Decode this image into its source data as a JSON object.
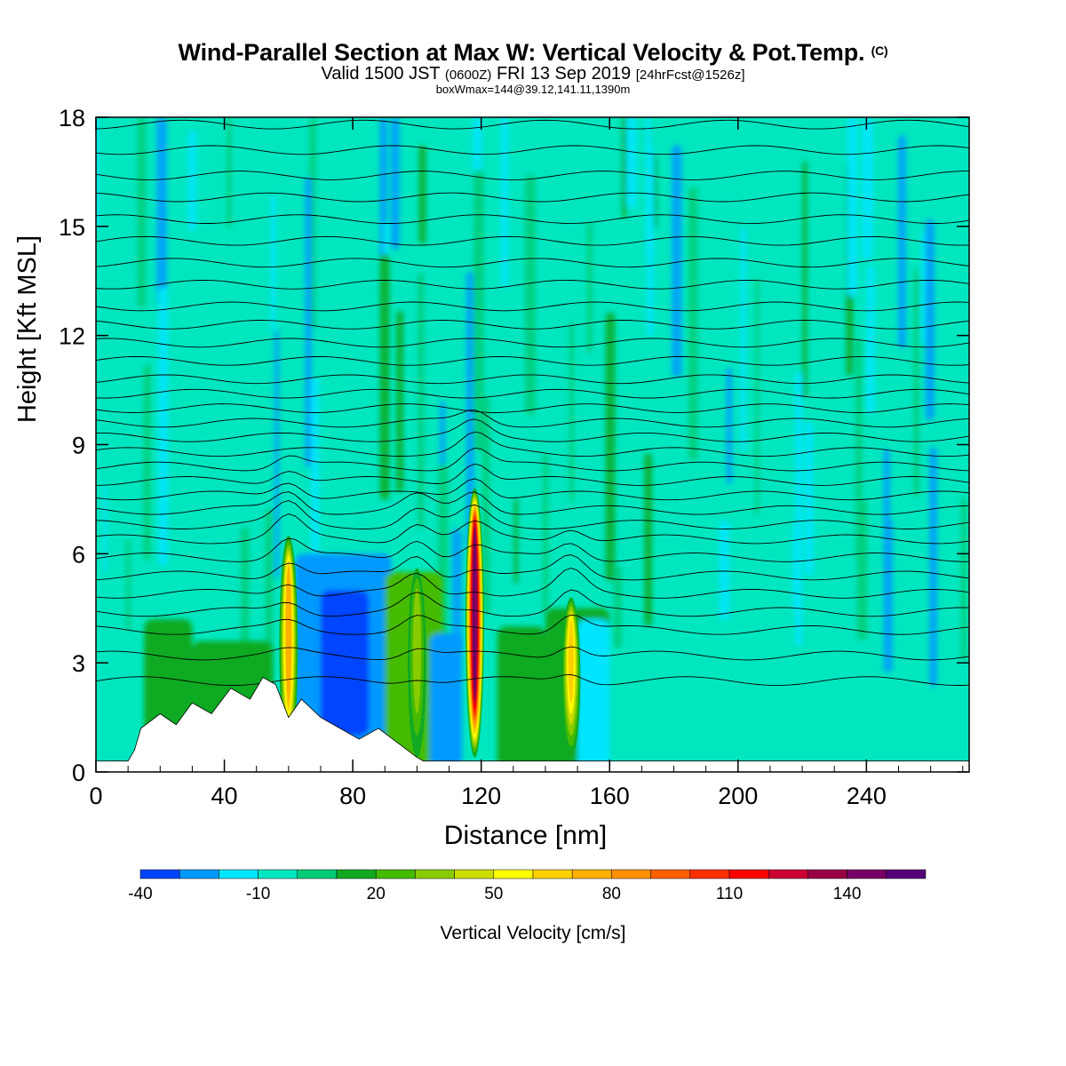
{
  "header": {
    "title": "Wind-Parallel Section at Max W: Vertical Velocity & Pot.Temp.",
    "title_mark": "(C)",
    "subtitle_a": "Valid 1500 JST",
    "subtitle_b": "(0600Z)",
    "subtitle_c": "FRI 13 Sep 2019",
    "subtitle_d": "[24hrFcst@1526z]",
    "subtitle_line3": "boxWmax=144@39.12,141.11,1390m"
  },
  "chart_data": {
    "type": "heatmap",
    "xlabel": "Distance [nm]",
    "ylabel": "Height [Kft MSL]",
    "xlim": [
      0,
      272
    ],
    "ylim": [
      0,
      18
    ],
    "x_ticks": [
      0,
      40,
      80,
      120,
      160,
      200,
      240
    ],
    "y_ticks": [
      0,
      3,
      6,
      9,
      12,
      15,
      18
    ],
    "background_value_cms": -5,
    "updrafts": [
      {
        "x": 60,
        "top_kft": 6.5,
        "peak_cms": 70
      },
      {
        "x": 100,
        "top_kft": 5.6,
        "peak_cms": 30
      },
      {
        "x": 118,
        "top_kft": 7.8,
        "peak_cms": 144
      },
      {
        "x": 148,
        "top_kft": 4.8,
        "peak_cms": 60
      }
    ],
    "terrain_kft": [
      {
        "x": 10,
        "h": 0.3
      },
      {
        "x": 12,
        "h": 0.6
      },
      {
        "x": 14,
        "h": 1.2
      },
      {
        "x": 20,
        "h": 1.6
      },
      {
        "x": 25,
        "h": 1.3
      },
      {
        "x": 30,
        "h": 1.9
      },
      {
        "x": 36,
        "h": 1.6
      },
      {
        "x": 42,
        "h": 2.3
      },
      {
        "x": 48,
        "h": 2.0
      },
      {
        "x": 52,
        "h": 2.6
      },
      {
        "x": 56,
        "h": 2.4
      },
      {
        "x": 60,
        "h": 1.5
      },
      {
        "x": 64,
        "h": 2.0
      },
      {
        "x": 70,
        "h": 1.5
      },
      {
        "x": 76,
        "h": 1.2
      },
      {
        "x": 82,
        "h": 0.9
      },
      {
        "x": 88,
        "h": 1.2
      },
      {
        "x": 94,
        "h": 0.8
      },
      {
        "x": 100,
        "h": 0.4
      },
      {
        "x": 102,
        "h": 0.3
      },
      {
        "x": 272,
        "h": 0.3
      }
    ],
    "theta_levels_kft": [
      2.5,
      3.2,
      3.9,
      4.4,
      4.9,
      5.4,
      5.9,
      6.4,
      6.8,
      7.2,
      7.6,
      8.0,
      8.4,
      8.8,
      9.2,
      9.6,
      10.0,
      10.4,
      10.8,
      11.3,
      11.8,
      12.3,
      12.8,
      13.4,
      14.0,
      14.6,
      15.2,
      15.8,
      16.4,
      17.1,
      17.8
    ],
    "colorbar": {
      "label": "Vertical Velocity [cm/s]",
      "tick_labels": [
        "-40",
        "-10",
        "20",
        "50",
        "80",
        "110",
        "140"
      ],
      "colors": [
        "#0000ee",
        "#0044ff",
        "#0099ff",
        "#00e5ff",
        "#00e6bf",
        "#00cc77",
        "#11aa22",
        "#44bb00",
        "#88cc00",
        "#ccdd00",
        "#ffff00",
        "#ffd000",
        "#ffb000",
        "#ff9000",
        "#ff6000",
        "#ff3000",
        "#ff0000",
        "#cc0033",
        "#990044",
        "#770066",
        "#550077"
      ]
    }
  }
}
